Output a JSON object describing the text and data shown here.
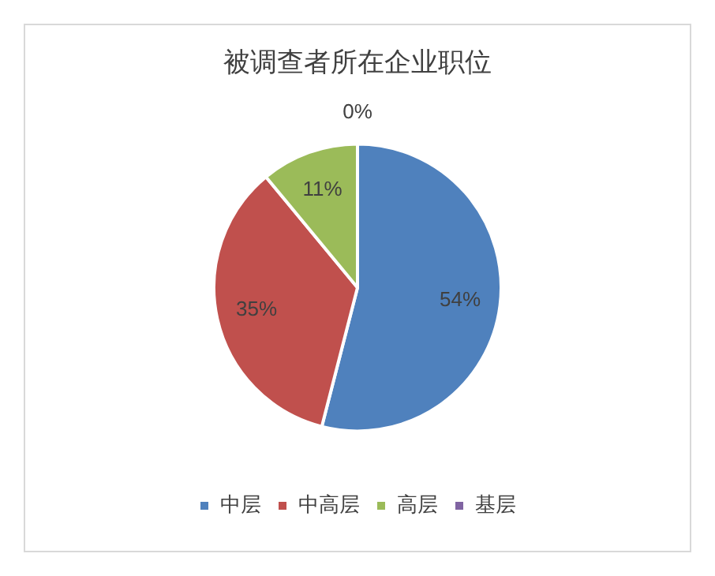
{
  "chart_data": {
    "type": "pie",
    "title": "被调查者所在企业职位",
    "categories": [
      "中层",
      "中高层",
      "高层",
      "基层"
    ],
    "values": [
      54,
      35,
      11,
      0
    ],
    "colors": [
      "#4f81bd",
      "#c0504d",
      "#9bbb59",
      "#8064a2"
    ],
    "value_labels": [
      "54%",
      "35%",
      "11%",
      "0%"
    ],
    "legend": "bottom"
  }
}
